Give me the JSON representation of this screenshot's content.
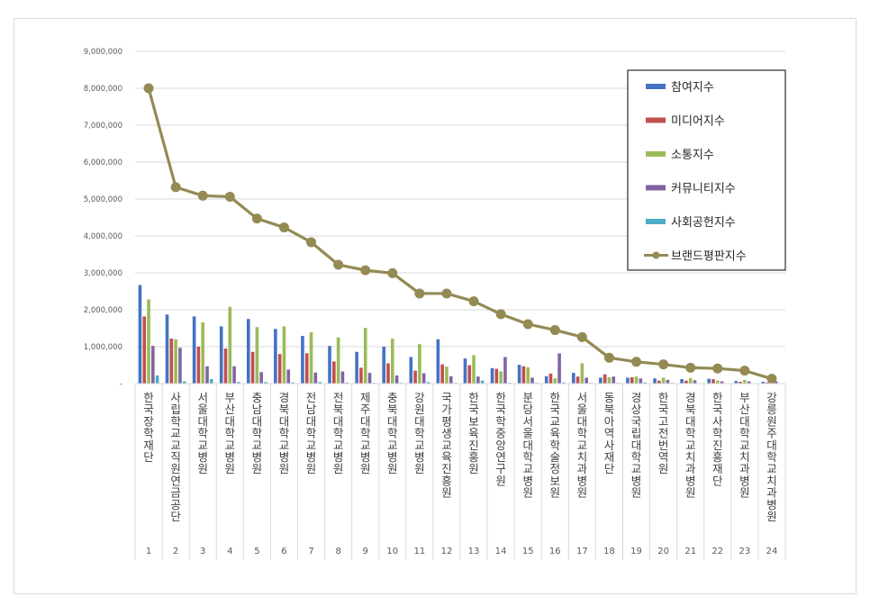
{
  "chart_data": {
    "type": "bar",
    "categories": [
      "한국장학재단",
      "사립학교교직원연금공단",
      "서울대학교병원",
      "부산대학교병원",
      "충남대학교병원",
      "경북대학교병원",
      "전남대학교병원",
      "전북대학교병원",
      "제주대학교병원",
      "충북대학교병원",
      "강원대학교병원",
      "국가평생교육진흥원",
      "한국보육진흥원",
      "한국학중앙연구원",
      "분당서울대학교병원",
      "한국교육학술정보원",
      "서울대학교치과병원",
      "동북아역사재단",
      "경상국립대학교병원",
      "한국고전번역원",
      "경북대학교치과병원",
      "한국사학진흥재단",
      "부산대학교치과병원",
      "강릉원주대학교치과병원"
    ],
    "index_labels": [
      "1",
      "2",
      "3",
      "4",
      "5",
      "6",
      "7",
      "8",
      "9",
      "10",
      "11",
      "12",
      "13",
      "14",
      "15",
      "16",
      "17",
      "18",
      "19",
      "20",
      "21",
      "22",
      "23",
      "24"
    ],
    "ylim": [
      0,
      9000000
    ],
    "yticks": [
      0,
      1000000,
      2000000,
      3000000,
      4000000,
      5000000,
      6000000,
      7000000,
      8000000,
      9000000
    ],
    "ytick_labels": [
      "-",
      "1,000,000",
      "2,000,000",
      "3,000,000",
      "4,000,000",
      "5,000,000",
      "6,000,000",
      "7,000,000",
      "8,000,000",
      "9,000,000"
    ],
    "grid": true,
    "legend_position": "top-right",
    "series": [
      {
        "name": "참여지수",
        "kind": "bar",
        "color": "#4472c4",
        "values": [
          2670000,
          1870000,
          1820000,
          1550000,
          1750000,
          1480000,
          1290000,
          1020000,
          860000,
          1000000,
          720000,
          1200000,
          680000,
          420000,
          510000,
          200000,
          290000,
          160000,
          160000,
          140000,
          120000,
          130000,
          70000,
          50000
        ]
      },
      {
        "name": "미디어지수",
        "kind": "bar",
        "color": "#c0504d",
        "values": [
          1820000,
          1220000,
          1000000,
          950000,
          860000,
          800000,
          820000,
          600000,
          430000,
          550000,
          350000,
          520000,
          500000,
          400000,
          470000,
          270000,
          190000,
          250000,
          170000,
          80000,
          80000,
          120000,
          50000,
          30000
        ]
      },
      {
        "name": "소통지수",
        "kind": "bar",
        "color": "#9bbb59",
        "values": [
          2280000,
          1200000,
          1660000,
          2080000,
          1530000,
          1550000,
          1390000,
          1250000,
          1510000,
          1220000,
          1070000,
          460000,
          770000,
          330000,
          440000,
          140000,
          550000,
          170000,
          190000,
          160000,
          150000,
          80000,
          100000,
          60000
        ]
      },
      {
        "name": "커뮤니티지수",
        "kind": "bar",
        "color": "#8064a2",
        "values": [
          1020000,
          970000,
          470000,
          470000,
          310000,
          380000,
          300000,
          330000,
          290000,
          220000,
          280000,
          200000,
          190000,
          720000,
          160000,
          820000,
          160000,
          190000,
          140000,
          100000,
          90000,
          60000,
          60000,
          60000
        ]
      },
      {
        "name": "사회공헌지수",
        "kind": "bar",
        "color": "#4bacc6",
        "values": [
          220000,
          60000,
          120000,
          40000,
          40000,
          30000,
          40000,
          30000,
          20000,
          20000,
          40000,
          20000,
          80000,
          20000,
          20000,
          30000,
          20000,
          20000,
          30000,
          20000,
          10000,
          10000,
          10000,
          10000
        ]
      },
      {
        "name": "브랜드평판지수",
        "kind": "line",
        "color": "#948a54",
        "values": [
          8000000,
          5320000,
          5090000,
          5060000,
          4470000,
          4230000,
          3830000,
          3220000,
          3070000,
          2990000,
          2440000,
          2440000,
          2230000,
          1880000,
          1610000,
          1450000,
          1260000,
          700000,
          590000,
          520000,
          430000,
          410000,
          350000,
          130000
        ]
      }
    ]
  }
}
